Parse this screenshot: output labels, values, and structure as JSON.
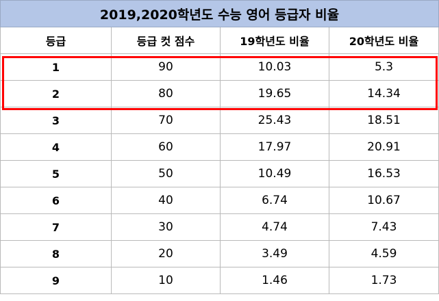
{
  "title": "2019,2020학년도 수능 영어 등급자 비율",
  "headers": [
    "등급",
    "등급 컷 점수",
    "19학년도 비율",
    "20학년도 비율"
  ],
  "rows": [
    {
      "grade": "1",
      "cut": "90",
      "r19": "10.03",
      "r20": "5.3"
    },
    {
      "grade": "2",
      "cut": "80",
      "r19": "19.65",
      "r20": "14.34"
    },
    {
      "grade": "3",
      "cut": "70",
      "r19": "25.43",
      "r20": "18.51"
    },
    {
      "grade": "4",
      "cut": "60",
      "r19": "17.97",
      "r20": "20.91"
    },
    {
      "grade": "5",
      "cut": "50",
      "r19": "10.49",
      "r20": "16.53"
    },
    {
      "grade": "6",
      "cut": "40",
      "r19": "6.74",
      "r20": "10.67"
    },
    {
      "grade": "7",
      "cut": "30",
      "r19": "4.74",
      "r20": "7.43"
    },
    {
      "grade": "8",
      "cut": "20",
      "r19": "3.49",
      "r20": "4.59"
    },
    {
      "grade": "9",
      "cut": "10",
      "r19": "1.46",
      "r20": "1.73"
    }
  ],
  "colors": {
    "title_bg": "#b4c6e7",
    "highlight": "#ff0000",
    "grid": "#b9b9b9"
  }
}
